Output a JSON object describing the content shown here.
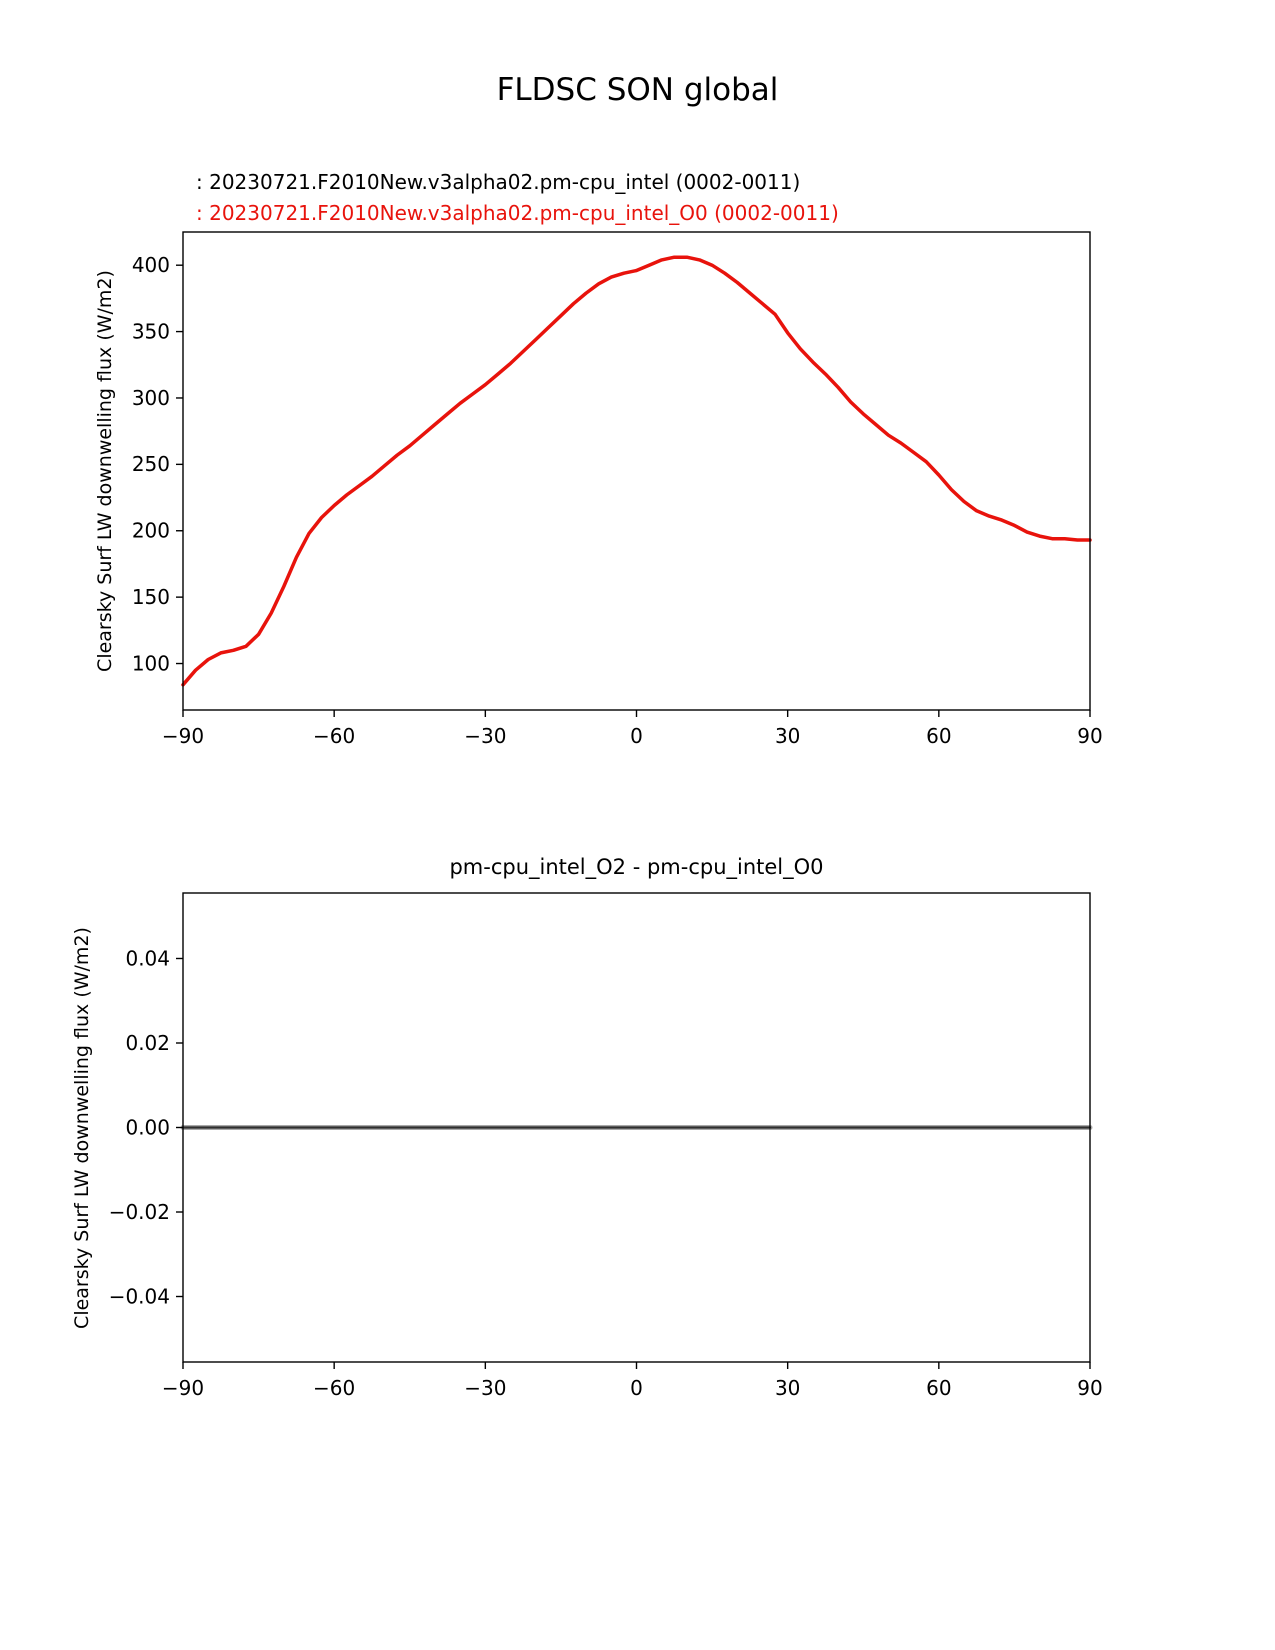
{
  "figure": {
    "title": "FLDSC SON global"
  },
  "chart_data": [
    {
      "type": "line",
      "panel": "top",
      "title": "FLDSC SON global",
      "xlabel": "",
      "ylabel": "Clearsky Surf LW downwelling flux (W/m2)",
      "xlim": [
        -90,
        90
      ],
      "ylim": [
        65,
        425
      ],
      "grid": false,
      "legend_position": "above-left",
      "xticks": [
        -90,
        -60,
        -30,
        0,
        30,
        60,
        90
      ],
      "xtick_labels": [
        "−90",
        "−60",
        "−30",
        "0",
        "30",
        "60",
        "90"
      ],
      "yticks": [
        100,
        150,
        200,
        250,
        300,
        350,
        400
      ],
      "ytick_labels": [
        "100",
        "150",
        "200",
        "250",
        "300",
        "350",
        "400"
      ],
      "legend": [
        {
          "label": ": 20230721.F2010New.v3alpha02.pm-cpu_intel (0002-0011)",
          "color": "#000000"
        },
        {
          "label": ": 20230721.F2010New.v3alpha02.pm-cpu_intel_O0 (0002-0011)",
          "color": "#e8130c"
        }
      ],
      "series": [
        {
          "name": "20230721.F2010New.v3alpha02.pm-cpu_intel (0002-0011)",
          "color": "#000000",
          "width": 2,
          "x": [
            -90,
            -87.5,
            -85,
            -82.5,
            -80,
            -77.5,
            -75,
            -72.5,
            -70,
            -67.5,
            -65,
            -62.5,
            -60,
            -57.5,
            -55,
            -52.5,
            -50,
            -47.5,
            -45,
            -42.5,
            -40,
            -37.5,
            -35,
            -32.5,
            -30,
            -27.5,
            -25,
            -22.5,
            -20,
            -17.5,
            -15,
            -12.5,
            -10,
            -7.5,
            -5,
            -2.5,
            0,
            2.5,
            5,
            7.5,
            10,
            12.5,
            15,
            17.5,
            20,
            22.5,
            25,
            27.5,
            30,
            32.5,
            35,
            37.5,
            40,
            42.5,
            45,
            47.5,
            50,
            52.5,
            55,
            57.5,
            60,
            62.5,
            65,
            67.5,
            70,
            72.5,
            75,
            77.5,
            80,
            82.5,
            85,
            87.5,
            90
          ],
          "y": [
            84,
            95,
            103,
            108,
            110,
            113,
            122,
            138,
            158,
            180,
            198,
            210,
            219,
            227,
            234,
            241,
            249,
            257,
            264,
            272,
            280,
            288,
            296,
            303,
            310,
            318,
            326,
            335,
            344,
            353,
            362,
            371,
            379,
            386,
            391,
            394,
            396,
            400,
            404,
            406,
            406,
            404,
            400,
            394,
            387,
            379,
            371,
            363,
            349,
            337,
            327,
            318,
            308,
            297,
            288,
            280,
            272,
            266,
            259,
            252,
            242,
            231,
            222,
            215,
            211,
            208,
            204,
            199,
            196,
            194,
            194,
            193,
            193
          ]
        },
        {
          "name": "20230721.F2010New.v3alpha02.pm-cpu_intel_O0 (0002-0011)",
          "color": "#e8130c",
          "width": 3.5,
          "x": [
            -90,
            -87.5,
            -85,
            -82.5,
            -80,
            -77.5,
            -75,
            -72.5,
            -70,
            -67.5,
            -65,
            -62.5,
            -60,
            -57.5,
            -55,
            -52.5,
            -50,
            -47.5,
            -45,
            -42.5,
            -40,
            -37.5,
            -35,
            -32.5,
            -30,
            -27.5,
            -25,
            -22.5,
            -20,
            -17.5,
            -15,
            -12.5,
            -10,
            -7.5,
            -5,
            -2.5,
            0,
            2.5,
            5,
            7.5,
            10,
            12.5,
            15,
            17.5,
            20,
            22.5,
            25,
            27.5,
            30,
            32.5,
            35,
            37.5,
            40,
            42.5,
            45,
            47.5,
            50,
            52.5,
            55,
            57.5,
            60,
            62.5,
            65,
            67.5,
            70,
            72.5,
            75,
            77.5,
            80,
            82.5,
            85,
            87.5,
            90
          ],
          "y": [
            84,
            95,
            103,
            108,
            110,
            113,
            122,
            138,
            158,
            180,
            198,
            210,
            219,
            227,
            234,
            241,
            249,
            257,
            264,
            272,
            280,
            288,
            296,
            303,
            310,
            318,
            326,
            335,
            344,
            353,
            362,
            371,
            379,
            386,
            391,
            394,
            396,
            400,
            404,
            406,
            406,
            404,
            400,
            394,
            387,
            379,
            371,
            363,
            349,
            337,
            327,
            318,
            308,
            297,
            288,
            280,
            272,
            266,
            259,
            252,
            242,
            231,
            222,
            215,
            211,
            208,
            204,
            199,
            196,
            194,
            194,
            193,
            193
          ]
        }
      ]
    },
    {
      "type": "line",
      "panel": "bottom",
      "title": "pm-cpu_intel_O2 - pm-cpu_intel_O0",
      "xlabel": "",
      "ylabel": "Clearsky Surf LW downwelling flux (W/m2)",
      "xlim": [
        -90,
        90
      ],
      "ylim": [
        -0.0555,
        0.0555
      ],
      "grid": false,
      "xticks": [
        -90,
        -60,
        -30,
        0,
        30,
        60,
        90
      ],
      "xtick_labels": [
        "−90",
        "−60",
        "−30",
        "0",
        "30",
        "60",
        "90"
      ],
      "yticks": [
        -0.04,
        -0.02,
        0.0,
        0.02,
        0.04
      ],
      "ytick_labels": [
        "−0.04",
        "−0.02",
        "0.00",
        "0.02",
        "0.04"
      ],
      "legend": [],
      "series": [
        {
          "name": "zero-reference-band",
          "color": "#a9a9a9",
          "width": 5,
          "x": [
            -90,
            90
          ],
          "y": [
            0,
            0
          ]
        },
        {
          "name": "pm-cpu_intel_O2 minus pm-cpu_intel_O0 difference",
          "color": "#2f2f2f",
          "width": 2.2,
          "x": [
            -90,
            90
          ],
          "y": [
            0,
            0
          ]
        }
      ]
    }
  ]
}
